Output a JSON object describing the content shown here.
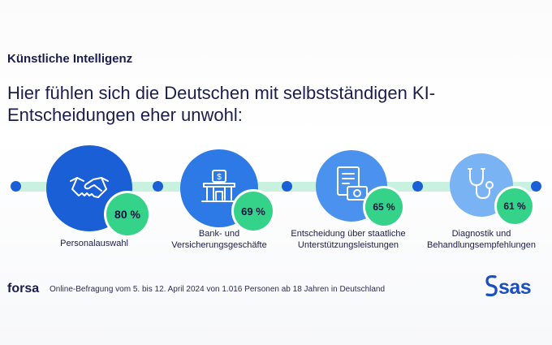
{
  "kicker": "Künstliche Intelligenz",
  "headline": "Hier fühlen sich die Deutschen mit selbstständigen KI-Entscheidungen eher unwohl:",
  "chart_data": {
    "type": "bar",
    "categories": [
      "Personalauswahl",
      "Bank- und Versicherungsgeschäfte",
      "Entscheidung über staatliche Unterstützungsleistungen",
      "Diagnostik und Behandlungsempfehlungen"
    ],
    "values": [
      80,
      69,
      65,
      61
    ],
    "value_labels": [
      "80 %",
      "69 %",
      "65 %",
      "61 %"
    ],
    "unit": "%"
  },
  "items": [
    {
      "caption_1": "Personalauswahl",
      "caption_2": "",
      "value_label": "80 %",
      "icon": "handshake-icon"
    },
    {
      "caption_1": "Bank- und",
      "caption_2": "Versicherungsgeschäfte",
      "value_label": "69 %",
      "icon": "bank-icon"
    },
    {
      "caption_1": "Entscheidung über staatliche",
      "caption_2": "Unterstützungsleistungen",
      "value_label": "65 %",
      "icon": "document-money-icon"
    },
    {
      "caption_1": "Diagnostik und",
      "caption_2": "Behandlungsempfehlungen",
      "value_label": "61 %",
      "icon": "stethoscope-icon"
    }
  ],
  "footer": {
    "source": "forsa",
    "note": "Online-Befragung vom 5. bis 12. April 2024 von 1.016 Personen ab 18 Jahren in Deutschland"
  },
  "brand": {
    "logo_text": "sas"
  },
  "colors": {
    "navy": "#1b1d4d",
    "blue": "#1a5fd6",
    "track": "#c8f1e0",
    "badge": "#35d28a"
  }
}
